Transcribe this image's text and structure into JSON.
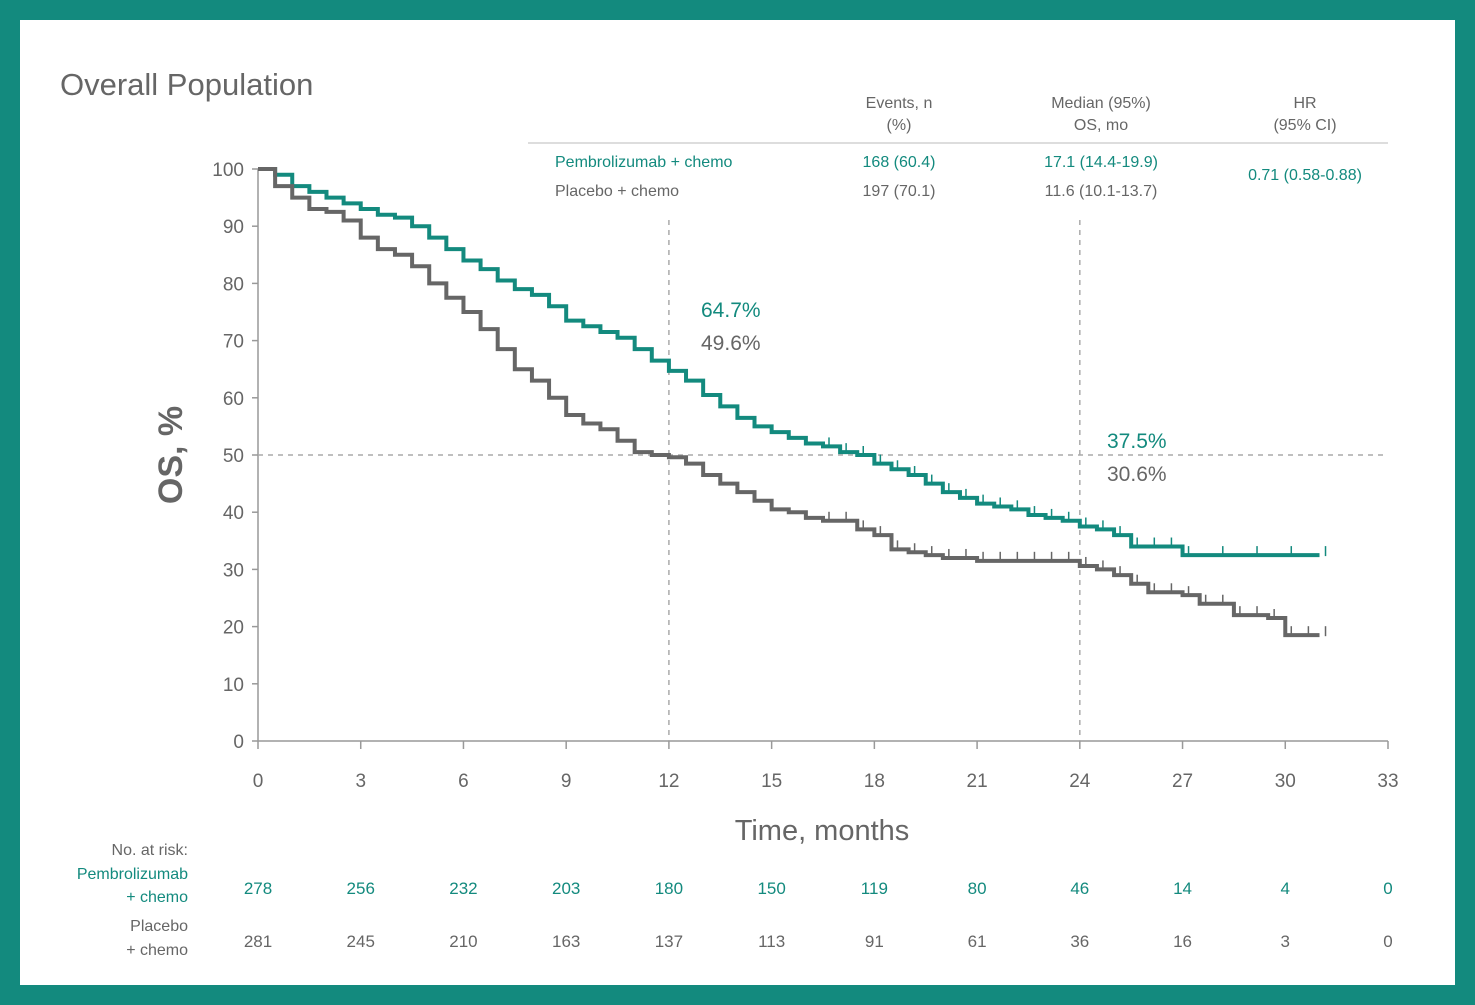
{
  "colors": {
    "frame": "#138a7e",
    "pembro": "#138a7e",
    "placebo": "#666666",
    "axis": "#999999",
    "text": "#555555"
  },
  "title": "Overall Population",
  "legend_table": {
    "headers": [
      "Events, n",
      "(%)",
      "Median (95%)",
      "OS, mo",
      "HR",
      "(95% CI)"
    ],
    "rows": [
      {
        "name": "Pembrolizumab + chemo",
        "events": "168 (60.4)",
        "median": "17.1 (14.4-19.9)"
      },
      {
        "name": "Placebo + chemo",
        "events": "197 (70.1)",
        "median": "11.6 (10.1-13.7)"
      }
    ],
    "hr": "0.71 (0.58-0.88)"
  },
  "annotations": {
    "m12_pembro": "64.7%",
    "m12_placebo": "49.6%",
    "m24_pembro": "37.5%",
    "m24_placebo": "30.6%"
  },
  "risk_table": {
    "header": "No. at risk:",
    "pembro_label": [
      "Pembrolizumab",
      "+ chemo"
    ],
    "placebo_label": [
      "Placebo",
      "+ chemo"
    ],
    "pembro": [
      "278",
      "256",
      "232",
      "203",
      "180",
      "150",
      "119",
      "80",
      "46",
      "14",
      "4",
      "0"
    ],
    "placebo": [
      "281",
      "245",
      "210",
      "163",
      "137",
      "113",
      "91",
      "61",
      "36",
      "16",
      "3",
      "0"
    ]
  },
  "chart_data": {
    "type": "line",
    "title": "Overall Population",
    "xlabel": "Time, months",
    "ylabel": "OS, %",
    "xlim": [
      0,
      33
    ],
    "ylim": [
      0,
      100
    ],
    "xticks": [
      0,
      3,
      6,
      9,
      12,
      15,
      18,
      21,
      24,
      27,
      30,
      33
    ],
    "yticks": [
      0,
      10,
      20,
      30,
      40,
      50,
      60,
      70,
      80,
      90,
      100
    ],
    "reference_lines": {
      "x": [
        12,
        24
      ],
      "y": [
        50
      ]
    },
    "series": [
      {
        "name": "Pembrolizumab + chemo",
        "color": "#138a7e",
        "x": [
          0,
          0.5,
          1,
          1.5,
          2,
          2.5,
          3,
          3.5,
          4,
          4.5,
          5,
          5.5,
          6,
          6.5,
          7,
          7.5,
          8,
          8.5,
          9,
          9.5,
          10,
          10.5,
          11,
          11.5,
          12,
          12.5,
          13,
          13.5,
          14,
          14.5,
          15,
          15.5,
          16,
          16.5,
          17,
          17.5,
          18,
          18.5,
          19,
          19.5,
          20,
          20.5,
          21,
          21.5,
          22,
          22.5,
          23,
          23.5,
          24,
          24.5,
          25,
          25.5,
          26,
          26.5,
          27,
          28,
          29,
          30,
          31
        ],
        "values": [
          100,
          99,
          97,
          96,
          95,
          94,
          93,
          92,
          91.5,
          90,
          88,
          86,
          84,
          82.5,
          80.5,
          79,
          78,
          76,
          73.5,
          72.5,
          71.5,
          70.5,
          68.5,
          66.5,
          64.7,
          63,
          60.5,
          58.5,
          56.5,
          55,
          54,
          53,
          52,
          51.5,
          50.5,
          50,
          48.5,
          47.5,
          46.5,
          45,
          43.5,
          42.5,
          41.5,
          41,
          40.5,
          39.5,
          39,
          38.5,
          37.5,
          37,
          36,
          34,
          34,
          34,
          32.5,
          32.5,
          32.5,
          32.5,
          32.5
        ]
      },
      {
        "name": "Placebo + chemo",
        "color": "#666666",
        "x": [
          0,
          0.5,
          1,
          1.5,
          2,
          2.5,
          3,
          3.5,
          4,
          4.5,
          5,
          5.5,
          6,
          6.5,
          7,
          7.5,
          8,
          8.5,
          9,
          9.5,
          10,
          10.5,
          11,
          11.5,
          12,
          12.5,
          13,
          13.5,
          14,
          14.5,
          15,
          15.5,
          16,
          16.5,
          17,
          17.5,
          18,
          18.5,
          19,
          19.5,
          20,
          20.5,
          21,
          21.5,
          22,
          22.5,
          23,
          23.5,
          24,
          24.5,
          25,
          25.5,
          26,
          26.5,
          27,
          27.5,
          28,
          28.5,
          29,
          29.5,
          30,
          30.5,
          31
        ],
        "values": [
          100,
          97,
          95,
          93,
          92.5,
          91,
          88,
          86,
          85,
          83,
          80,
          77.5,
          75,
          72,
          68.5,
          65,
          63,
          60,
          57,
          55.5,
          54.5,
          52.5,
          50.5,
          50,
          49.6,
          48.5,
          46.5,
          45,
          43.5,
          42,
          40.5,
          40,
          39,
          38.5,
          38.5,
          37,
          36,
          33.5,
          33,
          32.5,
          32,
          32,
          31.5,
          31.5,
          31.5,
          31.5,
          31.5,
          31.5,
          30.6,
          30,
          29,
          27.5,
          26,
          26,
          25.5,
          24,
          24,
          22,
          22,
          21.5,
          18.5,
          18.5,
          18.5
        ]
      }
    ]
  }
}
